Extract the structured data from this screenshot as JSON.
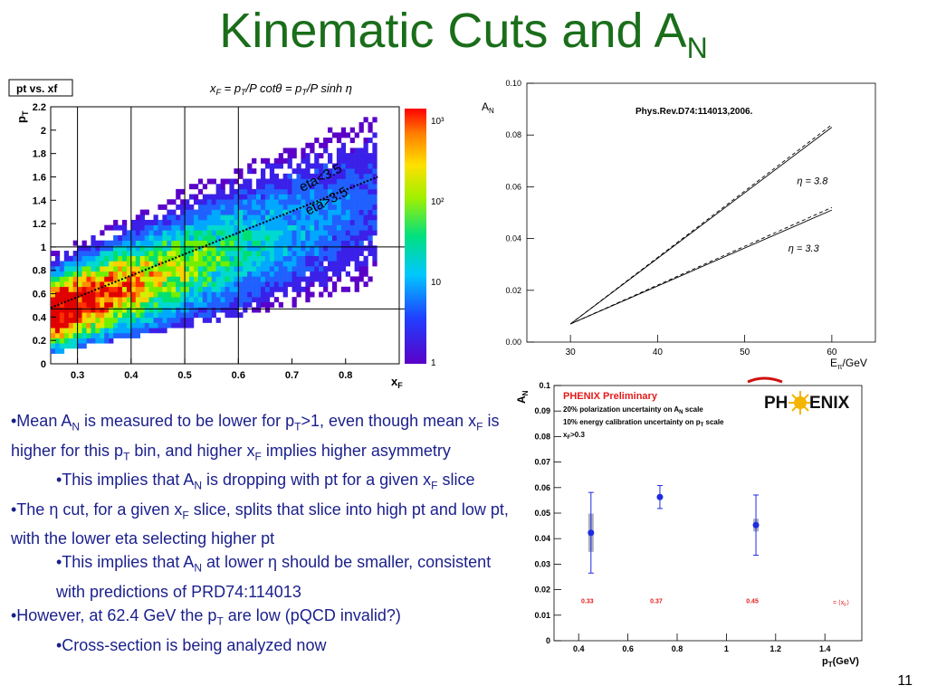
{
  "slide": {
    "title_main": "Kinematic Cuts and A",
    "title_sub": "N",
    "page_number": "11"
  },
  "colors": {
    "title": "#1a6e1a",
    "body_text": "#1a1f8c",
    "phenix_red": "#e31b1b",
    "data_blue": "#1e2be0"
  },
  "chart_data": [
    {
      "type": "heatmap",
      "panel_label": "pt vs. xf",
      "formula": "x_F = (p_T/P) cotθ = (p_T/P) sinh η",
      "xlabel_main": "x",
      "xlabel_sub": "F",
      "ylabel_main": "p",
      "ylabel_sub": "T",
      "xlim": [
        0.25,
        0.9
      ],
      "ylim": [
        0,
        2.2
      ],
      "x_tick_labels": [
        "0.3",
        "0.4",
        "0.5",
        "0.6",
        "0.7",
        "0.8"
      ],
      "y_tick_labels": [
        "0",
        "0.2",
        "0.4",
        "0.6",
        "0.8",
        "1",
        "1.2",
        "1.4",
        "1.6",
        "1.8",
        "2",
        "2.2"
      ],
      "x_ticks": [
        0.3,
        0.4,
        0.5,
        0.6,
        0.7,
        0.8
      ],
      "y_ticks": [
        0,
        0.2,
        0.4,
        0.6,
        0.8,
        1,
        1.2,
        1.4,
        1.6,
        1.8,
        2,
        2.2
      ],
      "colorbar_labels": [
        "1",
        "10",
        "10²",
        "10³"
      ],
      "vertical_cuts": [
        0.3,
        0.4,
        0.5,
        0.6
      ],
      "horizontal_cuts": [
        0.47,
        1.0
      ],
      "eta_line_label_upper": "eta<3.5",
      "eta_line_label_lower": "eta>3.5",
      "eta_line": [
        [
          0.25,
          0.48
        ],
        [
          0.86,
          1.6
        ]
      ],
      "log_scale_z": true
    },
    {
      "type": "line",
      "title": "Phys.Rev.D74:114013,2006.",
      "ylabel": "A",
      "ylabel_sub": "N",
      "xlabel": "E",
      "xlabel_sub": "π",
      "xlabel_tail": "/GeV",
      "xlim": [
        25,
        65
      ],
      "ylim": [
        0,
        0.1
      ],
      "x_tick_labels": [
        "30",
        "40",
        "50",
        "60"
      ],
      "x_ticks": [
        30,
        40,
        50,
        60
      ],
      "y_tick_labels": [
        "0.00",
        "0.02",
        "0.04",
        "0.06",
        "0.08",
        "0.10"
      ],
      "y_ticks": [
        0,
        0.02,
        0.04,
        0.06,
        0.08,
        0.1
      ],
      "series": [
        {
          "name": "η = 3.8",
          "style": "solid",
          "x": [
            30,
            60
          ],
          "y": [
            0.007,
            0.083
          ]
        },
        {
          "name": "η = 3.8",
          "style": "dashed",
          "x": [
            30,
            60
          ],
          "y": [
            0.007,
            0.084
          ]
        },
        {
          "name": "η = 3.3",
          "style": "solid",
          "x": [
            30,
            60
          ],
          "y": [
            0.007,
            0.051
          ]
        },
        {
          "name": "η = 3.3",
          "style": "dashed",
          "x": [
            30,
            60
          ],
          "y": [
            0.007,
            0.052
          ]
        }
      ],
      "annotations": [
        {
          "text": "η  =  3.8",
          "x": 56,
          "y": 0.061
        },
        {
          "text": "η  =  3.3",
          "x": 55,
          "y": 0.035
        }
      ]
    },
    {
      "type": "scatter",
      "ylabel": "A",
      "ylabel_sub": "N",
      "xlabel": "p",
      "xlabel_sub": "T",
      "xlabel_tail": "(GeV)",
      "xlim": [
        0.3,
        1.55
      ],
      "ylim": [
        0,
        0.1
      ],
      "x_tick_labels": [
        "0.4",
        "0.6",
        "0.8",
        "1",
        "1.2",
        "1.4"
      ],
      "x_ticks": [
        0.4,
        0.6,
        0.8,
        1.0,
        1.2,
        1.4
      ],
      "y_tick_labels": [
        "0",
        "0.01",
        "0.02",
        "0.03",
        "0.04",
        "0.05",
        "0.06",
        "0.07",
        "0.08",
        "0.09",
        "0.1"
      ],
      "y_ticks": [
        0,
        0.01,
        0.02,
        0.03,
        0.04,
        0.05,
        0.06,
        0.07,
        0.08,
        0.09,
        0.1
      ],
      "legend_title": "PHENIX Preliminary",
      "legend_lines": [
        "20% polarization uncertainty on A",
        "10% energy calibration uncertainty on p",
        "x"
      ],
      "legend_subs": [
        "N",
        "T",
        "F"
      ],
      "legend_tails": [
        " scale",
        " scale",
        ">0.3"
      ],
      "logo_left": "PH",
      "logo_right": "ENIX",
      "points": [
        {
          "x": 0.45,
          "y": 0.0423,
          "err": 0.0158,
          "sys": 0.0075,
          "xf_label": "0.33"
        },
        {
          "x": 0.73,
          "y": 0.0563,
          "err": 0.0045,
          "sys": 0.0,
          "xf_label": "0.37"
        },
        {
          "x": 1.12,
          "y": 0.0453,
          "err": 0.0118,
          "sys": 0.0025,
          "xf_label": "0.45"
        }
      ],
      "xf_note": "= ⟨x",
      "xf_note_sub": "F",
      "xf_note_tail": "⟩"
    }
  ],
  "bullets": [
    {
      "level": 1,
      "parts": [
        "•Mean A",
        "N",
        " is measured to be lower for p",
        "T",
        ">1, even though mean x",
        "F",
        " is higher for this p",
        "T",
        " bin, and higher x",
        "F",
        " implies higher asymmetry"
      ]
    },
    {
      "level": 2,
      "parts": [
        "•This implies that A",
        "N",
        " is dropping with pt for a given x",
        "F",
        " slice"
      ]
    },
    {
      "level": 1,
      "parts": [
        "•The η cut, for a given x",
        "F",
        " slice, splits that slice into high pt and low pt, with the lower eta selecting higher pt"
      ]
    },
    {
      "level": 2,
      "parts": [
        "•This implies that A",
        "N",
        " at lower η should be smaller, consistent with predictions of PRD74:114013"
      ]
    },
    {
      "level": 1,
      "parts": [
        "•However, at 62.4 GeV the p",
        "T",
        " are low (pQCD invalid?)"
      ]
    },
    {
      "level": 2,
      "parts": [
        "•Cross-section is being analyzed now"
      ]
    }
  ]
}
